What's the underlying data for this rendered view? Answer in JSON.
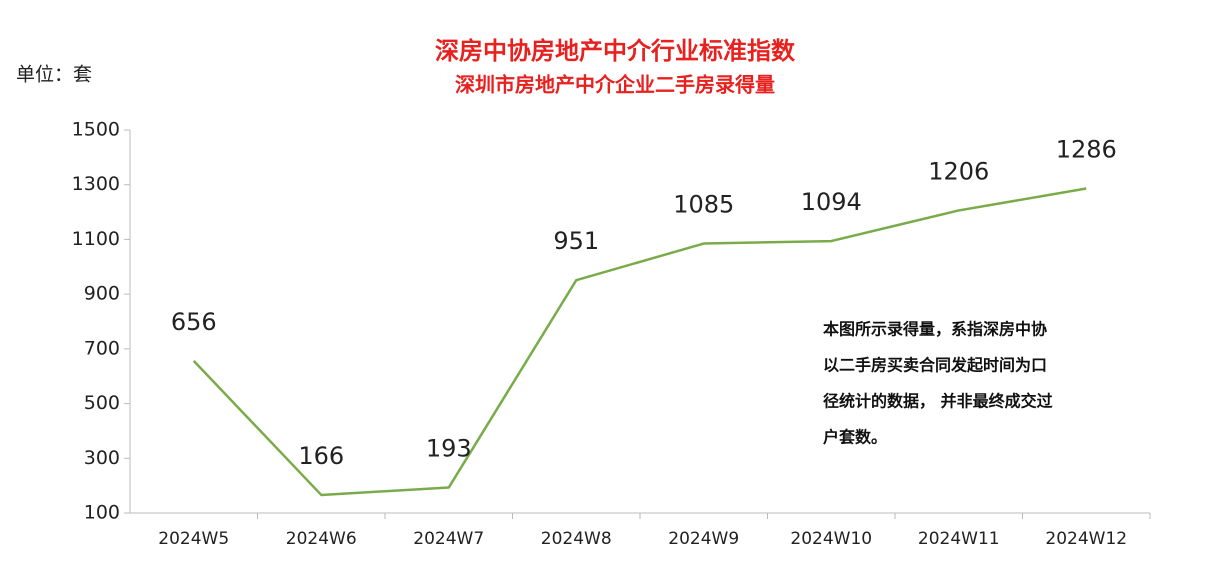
{
  "chart_data": {
    "type": "line",
    "title": "深房中协房地产中介行业标准指数",
    "subtitle": "深圳市房地产中介企业二手房录得量",
    "unit_label": "单位：套",
    "annotation": [
      "本图所示录得量，系指深房中协",
      "以二手房买卖合同发起时间为口",
      "径统计的数据， 并非最终成交过",
      "户套数。"
    ],
    "categories": [
      "2024W5",
      "2024W6",
      "2024W7",
      "2024W8",
      "2024W9",
      "2024W10",
      "2024W11",
      "2024W12"
    ],
    "series": [
      {
        "name": "录得量",
        "color": "#7aab4a",
        "values": [
          656,
          166,
          193,
          951,
          1085,
          1094,
          1206,
          1286
        ]
      }
    ],
    "ylim": [
      100,
      1500
    ],
    "yticks": [
      100,
      300,
      500,
      700,
      900,
      1100,
      1300,
      1500
    ],
    "title_color": "#e8201e"
  }
}
